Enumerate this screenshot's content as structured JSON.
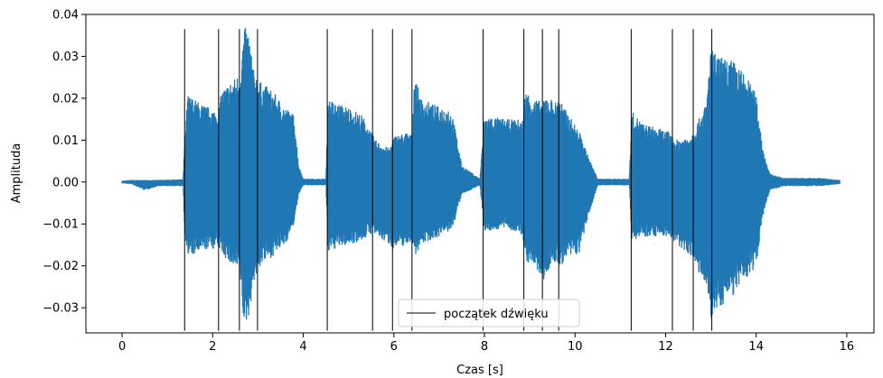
{
  "chart_data": {
    "type": "line",
    "title": "",
    "xlabel": "Czas [s]",
    "ylabel": "Amplituda",
    "xlim": [
      -0.8,
      16.6
    ],
    "ylim": [
      -0.036,
      0.04
    ],
    "xticks": [
      0,
      2,
      4,
      6,
      8,
      10,
      12,
      14,
      16
    ],
    "xtick_labels": [
      "0",
      "2",
      "4",
      "6",
      "8",
      "10",
      "12",
      "14",
      "16"
    ],
    "yticks": [
      -0.03,
      -0.02,
      -0.01,
      0.0,
      0.01,
      0.02,
      0.03,
      0.04
    ],
    "ytick_labels": [
      "−0.03",
      "−0.02",
      "−0.01",
      "0.00",
      "0.01",
      "0.02",
      "0.03",
      "0.04"
    ],
    "grid": false,
    "legend_position": "bottom-center",
    "waveform": {
      "color": "#1f77b4",
      "x_start": 0.0,
      "x_end": 15.85,
      "envelope_x": [
        0.0,
        0.2,
        0.5,
        0.8,
        1.1,
        1.35,
        1.38,
        1.45,
        1.7,
        1.9,
        2.1,
        2.15,
        2.2,
        2.4,
        2.6,
        2.65,
        2.7,
        2.8,
        2.9,
        3.0,
        3.05,
        3.3,
        3.6,
        3.8,
        3.9,
        4.0,
        4.3,
        4.5,
        4.55,
        4.7,
        5.0,
        5.3,
        5.55,
        5.6,
        5.9,
        6.0,
        6.3,
        6.4,
        6.45,
        6.6,
        7.0,
        7.2,
        7.3,
        7.5,
        7.9,
        8.0,
        8.5,
        8.85,
        8.9,
        9.1,
        9.3,
        9.35,
        9.6,
        9.65,
        9.75,
        10.1,
        10.3,
        10.5,
        10.9,
        11.2,
        11.25,
        11.5,
        12.1,
        12.2,
        12.5,
        12.6,
        12.65,
        12.9,
        13.0,
        13.05,
        13.2,
        13.5,
        13.8,
        14.0,
        14.15,
        14.3,
        14.6,
        15.0,
        15.4,
        15.85
      ],
      "envelope_top": [
        0.0003,
        0.0005,
        0.0005,
        0.0005,
        0.0006,
        0.0007,
        0.01,
        0.021,
        0.019,
        0.018,
        0.017,
        0.019,
        0.022,
        0.024,
        0.026,
        0.032,
        0.037,
        0.036,
        0.027,
        0.025,
        0.024,
        0.022,
        0.018,
        0.016,
        0.004,
        0.0008,
        0.0008,
        0.0008,
        0.02,
        0.019,
        0.018,
        0.016,
        0.011,
        0.01,
        0.008,
        0.011,
        0.012,
        0.011,
        0.026,
        0.02,
        0.018,
        0.018,
        0.016,
        0.004,
        0.0008,
        0.016,
        0.015,
        0.015,
        0.022,
        0.02,
        0.019,
        0.021,
        0.019,
        0.021,
        0.018,
        0.012,
        0.006,
        0.0008,
        0.0008,
        0.0008,
        0.017,
        0.014,
        0.012,
        0.01,
        0.011,
        0.012,
        0.013,
        0.019,
        0.033,
        0.031,
        0.03,
        0.029,
        0.025,
        0.021,
        0.008,
        0.002,
        0.001,
        0.001,
        0.001,
        0.0005
      ],
      "envelope_bottom": [
        -0.0003,
        -0.0005,
        -0.002,
        -0.001,
        -0.001,
        -0.001,
        -0.012,
        -0.018,
        -0.017,
        -0.016,
        -0.016,
        -0.016,
        -0.017,
        -0.02,
        -0.022,
        -0.03,
        -0.035,
        -0.032,
        -0.024,
        -0.022,
        -0.02,
        -0.018,
        -0.015,
        -0.01,
        -0.003,
        -0.0008,
        -0.0008,
        -0.0008,
        -0.017,
        -0.016,
        -0.015,
        -0.014,
        -0.012,
        -0.013,
        -0.015,
        -0.016,
        -0.015,
        -0.014,
        -0.018,
        -0.015,
        -0.013,
        -0.012,
        -0.011,
        -0.003,
        -0.0008,
        -0.012,
        -0.011,
        -0.013,
        -0.019,
        -0.02,
        -0.024,
        -0.022,
        -0.019,
        -0.021,
        -0.019,
        -0.017,
        -0.008,
        -0.0008,
        -0.0008,
        -0.0008,
        -0.014,
        -0.013,
        -0.013,
        -0.015,
        -0.017,
        -0.018,
        -0.02,
        -0.026,
        -0.033,
        -0.032,
        -0.03,
        -0.027,
        -0.023,
        -0.02,
        -0.008,
        -0.002,
        -0.001,
        -0.001,
        -0.001,
        -0.0005
      ]
    },
    "onset_markers": {
      "label": "początek dźwięku",
      "color": "#000000",
      "x": [
        1.38,
        2.13,
        2.59,
        2.99,
        4.53,
        5.53,
        5.97,
        6.4,
        7.97,
        8.87,
        9.28,
        9.64,
        11.24,
        12.15,
        12.61,
        13.02
      ],
      "y_range": [
        -0.0355,
        0.0365
      ]
    },
    "legend": [
      {
        "label": "początek dźwięku",
        "style": "line",
        "color": "#000000"
      }
    ]
  }
}
